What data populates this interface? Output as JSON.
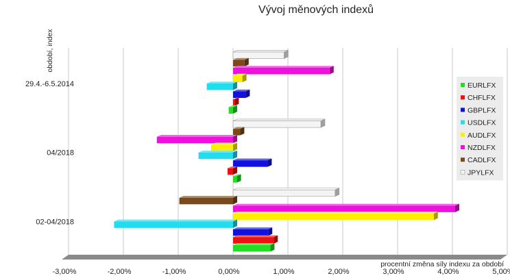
{
  "chart_data": {
    "type": "bar",
    "orientation": "horizontal",
    "title": "Vývoj měnových indexů",
    "xlabel": "procentní změna síly indexu za období",
    "ylabel": "období, index",
    "xlim": [
      -3,
      5
    ],
    "x_ticks": [
      "-3,00%",
      "-2,00%",
      "-1,00%",
      "0,00%",
      "1,00%",
      "2,00%",
      "3,00%",
      "4,00%",
      "5,00%"
    ],
    "x_tick_values": [
      -3,
      -2,
      -1,
      0,
      1,
      2,
      3,
      4,
      5
    ],
    "grid": true,
    "legend_position": "right",
    "categories": [
      "29.4.-6.5.2014",
      "04/2018",
      "02-04/2018"
    ],
    "series": [
      {
        "name": "EURLFX",
        "color": "#22dd22",
        "values": [
          -0.08,
          0.07,
          0.68
        ]
      },
      {
        "name": "CHFLFX",
        "color": "#ee1111",
        "values": [
          0.03,
          -0.1,
          0.74
        ]
      },
      {
        "name": "GBPLFX",
        "color": "#1111dd",
        "values": [
          0.23,
          0.63,
          0.64
        ]
      },
      {
        "name": "USDLFX",
        "color": "#22ddee",
        "values": [
          -0.48,
          -0.63,
          -2.17
        ]
      },
      {
        "name": "AUDLFX",
        "color": "#ffee00",
        "values": [
          0.17,
          -0.4,
          3.66
        ]
      },
      {
        "name": "NZDLFX",
        "color": "#ee11dd",
        "values": [
          1.76,
          -1.39,
          4.05
        ]
      },
      {
        "name": "CADLFX",
        "color": "#7a4a1a",
        "values": [
          0.21,
          0.13,
          -0.98
        ]
      },
      {
        "name": "JPYLFX",
        "color": "#f4f4f4",
        "values": [
          0.93,
          1.6,
          1.86
        ]
      }
    ]
  }
}
